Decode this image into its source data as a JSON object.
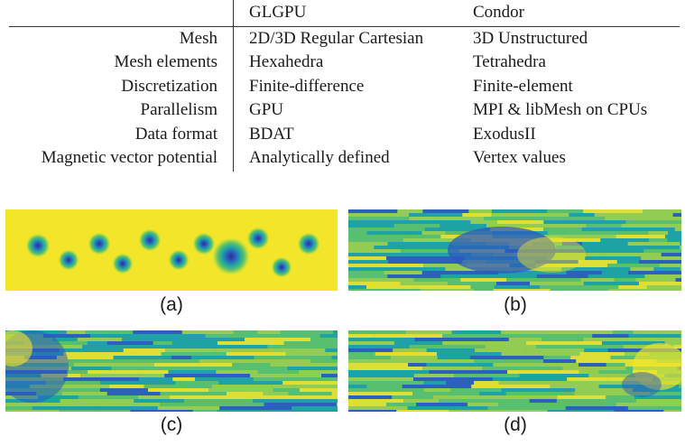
{
  "table": {
    "columns": [
      "GLGPU",
      "Condor"
    ],
    "rows": [
      {
        "label": "Mesh",
        "glgpu": "2D/3D Regular Cartesian",
        "condor": "3D Unstructured"
      },
      {
        "label": "Mesh elements",
        "glgpu": "Hexahedra",
        "condor": "Tetrahedra"
      },
      {
        "label": "Discretization",
        "glgpu": "Finite-difference",
        "condor": "Finite-element"
      },
      {
        "label": "Parallelism",
        "glgpu": "GPU",
        "condor": "MPI & libMesh on CPUs"
      },
      {
        "label": "Data format",
        "glgpu": "BDAT",
        "condor": "ExodusII"
      },
      {
        "label": "Magnetic vector potential",
        "glgpu": "Analytically defined",
        "condor": "Vertex values"
      }
    ]
  },
  "figure": {
    "captions": [
      "(a)",
      "(b)",
      "(c)",
      "(d)"
    ],
    "colors": {
      "yellow": "#f2e52a",
      "green": "#5ec26a",
      "teal": "#1fa2a5",
      "blue": "#2c5ac0",
      "navy": "#2a2e8c"
    }
  }
}
